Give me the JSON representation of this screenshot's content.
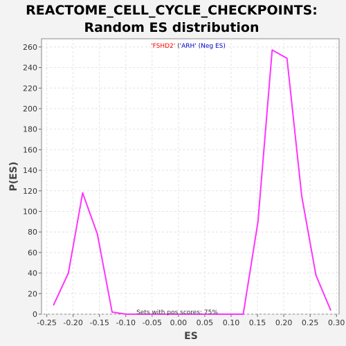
{
  "chart_data": {
    "type": "line",
    "title_lines": [
      "REACTOME_CELL_CYCLE_CHECKPOINTS:",
      "Random ES distribution"
    ],
    "xlabel": "ES",
    "ylabel": "P(ES)",
    "xlim": [
      -0.26,
      0.305
    ],
    "ylim": [
      0,
      268
    ],
    "x_ticks": [
      -0.25,
      -0.2,
      -0.15,
      -0.1,
      -0.05,
      0.0,
      0.05,
      0.1,
      0.15,
      0.2,
      0.25,
      0.3
    ],
    "x_tick_labels": [
      "-0.25",
      "-0.20",
      "-0.15",
      "-0.10",
      "-0.05",
      "0.00",
      "0.05",
      "0.10",
      "0.15",
      "0.20",
      "0.25",
      "0.30"
    ],
    "y_ticks": [
      0,
      20,
      40,
      60,
      80,
      100,
      120,
      140,
      160,
      180,
      200,
      220,
      240,
      260
    ],
    "y_tick_labels": [
      "0",
      "20",
      "40",
      "60",
      "80",
      "100",
      "120",
      "140",
      "160",
      "180",
      "200",
      "220",
      "240",
      "260"
    ],
    "grid": true,
    "series": [
      {
        "color": "#ff33ff",
        "x": [
          -0.237,
          -0.209,
          -0.182,
          -0.154,
          -0.126,
          -0.099,
          -0.071,
          -0.043,
          -0.015,
          0.012,
          0.04,
          0.068,
          0.095,
          0.123,
          0.151,
          0.178,
          0.206,
          0.234,
          0.261,
          0.289
        ],
        "y": [
          9,
          40,
          118,
          78,
          2,
          0,
          0,
          0,
          0,
          0,
          0,
          0,
          0,
          0,
          90,
          257,
          249,
          115,
          38,
          4
        ]
      }
    ],
    "legend": {
      "parts": [
        {
          "text": "'FSHD2'",
          "color": "#ff0000"
        },
        {
          "text": " (",
          "color": "#333333"
        },
        {
          "text": "'ARH'",
          "color": "#0000cc"
        },
        {
          "text": " (Neg ES)",
          "color": "#0000cc"
        }
      ],
      "placement": "top-center"
    },
    "annotation": "Sets with pos scores: 75%"
  }
}
